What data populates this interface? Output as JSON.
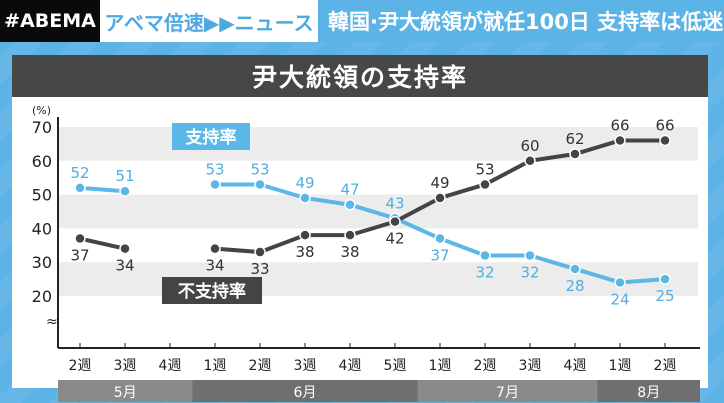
{
  "header": {
    "logo": "#ABEMA",
    "program": "アベマ倍速▶▶ニュース",
    "headline": "韓国·尹大統領が就任100日 支持率は低迷"
  },
  "chart_data": {
    "type": "line",
    "title": "尹大統領の支持率",
    "ylabel": "(%)",
    "ylim": [
      20,
      70
    ],
    "yticks": [
      20,
      30,
      40,
      50,
      60,
      70
    ],
    "categories": [
      "2週",
      "3週",
      "4週",
      "1週",
      "2週",
      "3週",
      "4週",
      "5週",
      "1週",
      "2週",
      "3週",
      "4週",
      "1週",
      "2週"
    ],
    "months": [
      {
        "label": "5月",
        "weeks": 3
      },
      {
        "label": "6月",
        "weeks": 5
      },
      {
        "label": "7月",
        "weeks": 4
      },
      {
        "label": "8月",
        "weeks": 2
      }
    ],
    "series": [
      {
        "name": "支持率",
        "color": "#5bb8e6",
        "values": [
          52,
          51,
          null,
          53,
          53,
          49,
          47,
          43,
          37,
          32,
          32,
          28,
          24,
          25
        ]
      },
      {
        "name": "不支持率",
        "color": "#444444",
        "values": [
          37,
          34,
          null,
          34,
          33,
          38,
          38,
          42,
          49,
          53,
          60,
          62,
          66,
          66
        ]
      }
    ],
    "grid": "alternating bands"
  }
}
